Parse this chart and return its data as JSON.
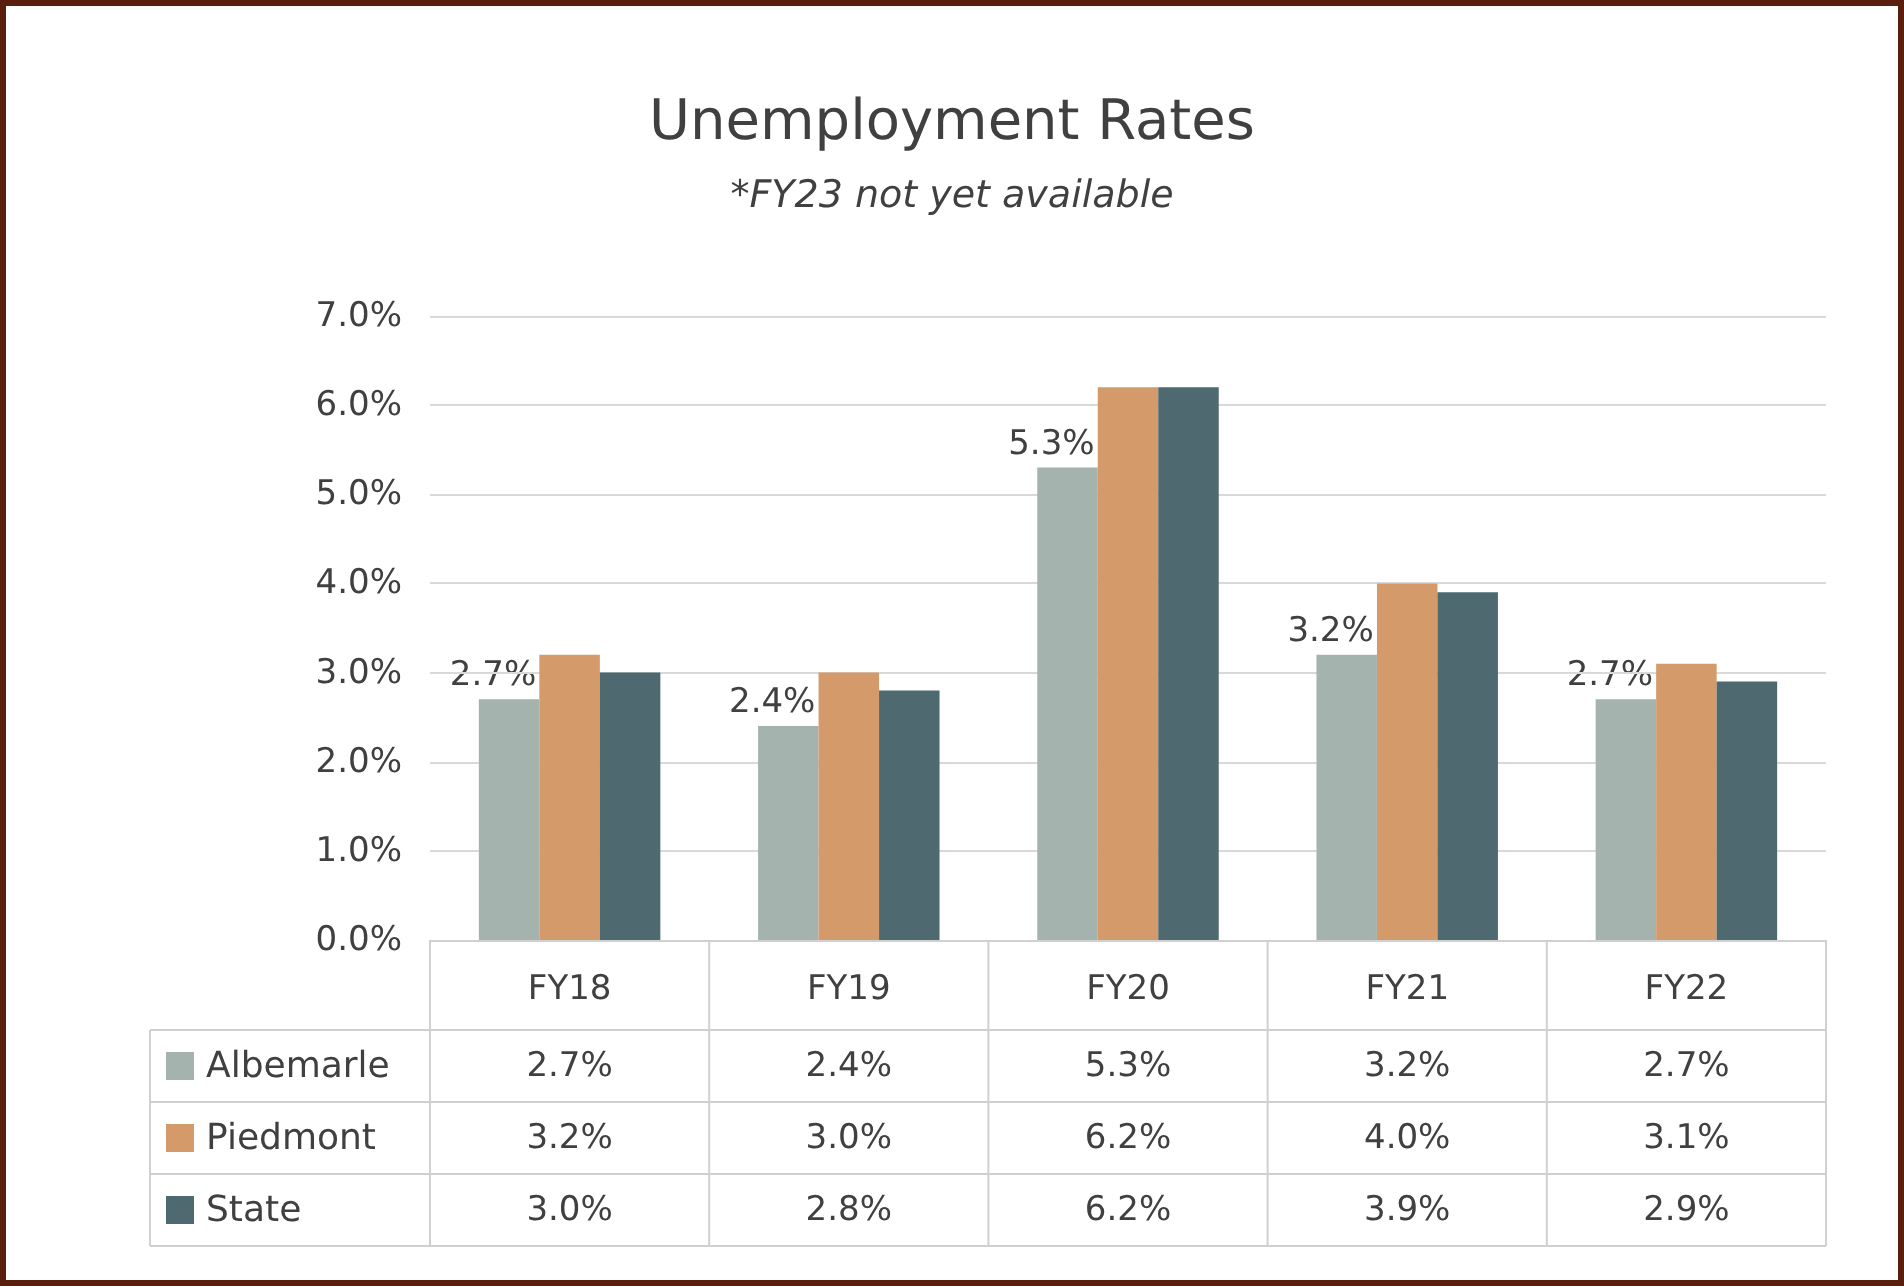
{
  "chart_data": {
    "type": "bar",
    "title": "Unemployment Rates",
    "subtitle": "*FY23 not yet available",
    "categories": [
      "FY18",
      "FY19",
      "FY20",
      "FY21",
      "FY22"
    ],
    "series": [
      {
        "name": "Albemarle",
        "color": "#a5b3ae",
        "values": [
          2.7,
          2.4,
          5.3,
          3.2,
          2.7
        ],
        "value_labels": [
          "2.7%",
          "2.4%",
          "5.3%",
          "3.2%",
          "2.7%"
        ]
      },
      {
        "name": "Piedmont",
        "color": "#d49a6a",
        "values": [
          3.2,
          3.0,
          6.2,
          4.0,
          3.1
        ],
        "value_labels": [
          "3.2%",
          "3.0%",
          "6.2%",
          "4.0%",
          "3.1%"
        ]
      },
      {
        "name": "State",
        "color": "#4e6a70",
        "values": [
          3.0,
          2.8,
          6.2,
          3.9,
          2.9
        ],
        "value_labels": [
          "3.0%",
          "2.8%",
          "6.2%",
          "3.9%",
          "2.9%"
        ]
      }
    ],
    "annotations": [
      "2.7%",
      "2.4%",
      "5.3%",
      "3.2%",
      "2.7%"
    ],
    "ylim": [
      0,
      7
    ],
    "yticks": [
      {
        "value": 0,
        "label": "0.0%"
      },
      {
        "value": 1,
        "label": "1.0%"
      },
      {
        "value": 2,
        "label": "2.0%"
      },
      {
        "value": 3,
        "label": "3.0%"
      },
      {
        "value": 4,
        "label": "4.0%"
      },
      {
        "value": 5,
        "label": "5.0%"
      },
      {
        "value": 6,
        "label": "6.0%"
      },
      {
        "value": 7,
        "label": "7.0%"
      }
    ],
    "grid": "y",
    "legend": "bottom"
  }
}
